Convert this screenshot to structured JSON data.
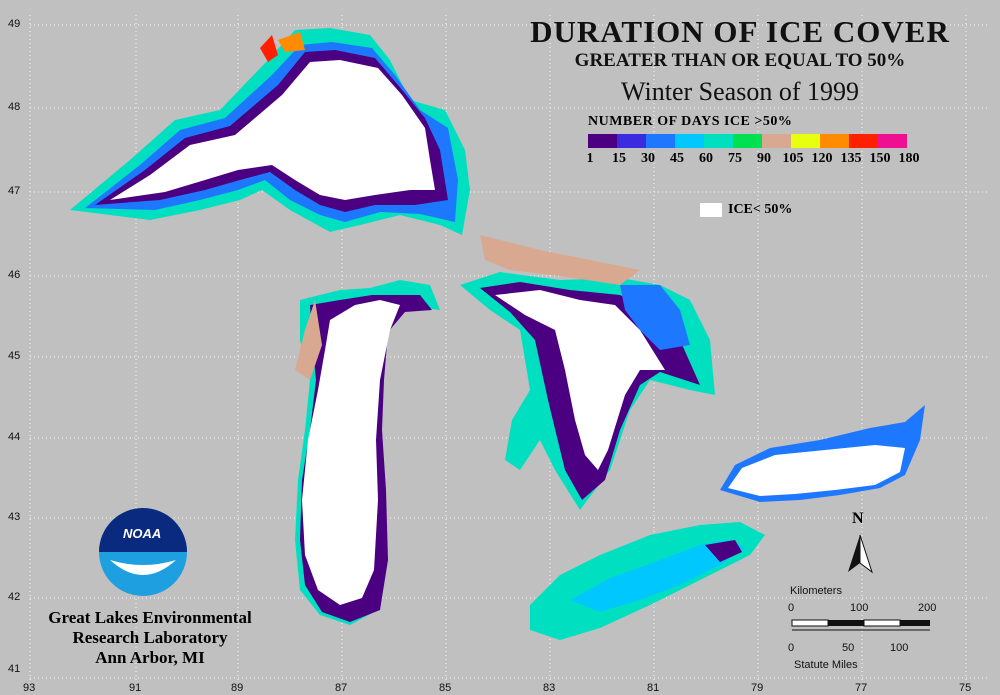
{
  "title": {
    "line1": "DURATION OF ICE COVER",
    "line2": "GREATER THAN OR EQUAL TO 50%",
    "line3": "Winter Season of 1999"
  },
  "legend": {
    "title": "NUMBER OF DAYS ICE >50%",
    "colors": [
      "#4b0082",
      "#3a2be0",
      "#1e78ff",
      "#00c8ff",
      "#00e0c0",
      "#00e050",
      "#d8a890",
      "#e8ff10",
      "#ff8c00",
      "#ff2000",
      "#ee1090"
    ],
    "ticks": [
      "1",
      "15",
      "30",
      "45",
      "60",
      "75",
      "90",
      "105",
      "120",
      "135",
      "150",
      "180"
    ],
    "ice_label": "ICE< 50%"
  },
  "axes": {
    "lon": [
      "93",
      "91",
      "89",
      "87",
      "85",
      "83",
      "81",
      "79",
      "77",
      "75"
    ],
    "lat": [
      "49",
      "48",
      "47",
      "46",
      "45",
      "44",
      "43",
      "42",
      "41"
    ]
  },
  "logo": {
    "text": "NOAA"
  },
  "org": {
    "line1": "Great Lakes Environmental",
    "line2": "Research Laboratory",
    "line3": "Ann Arbor, MI"
  },
  "north": {
    "label": "N"
  },
  "scale": {
    "km_label": "Kilometers",
    "km_ticks": [
      "0",
      "100",
      "200"
    ],
    "mi_ticks": [
      "0",
      "50",
      "100"
    ],
    "mi_label": "Statute Miles"
  }
}
